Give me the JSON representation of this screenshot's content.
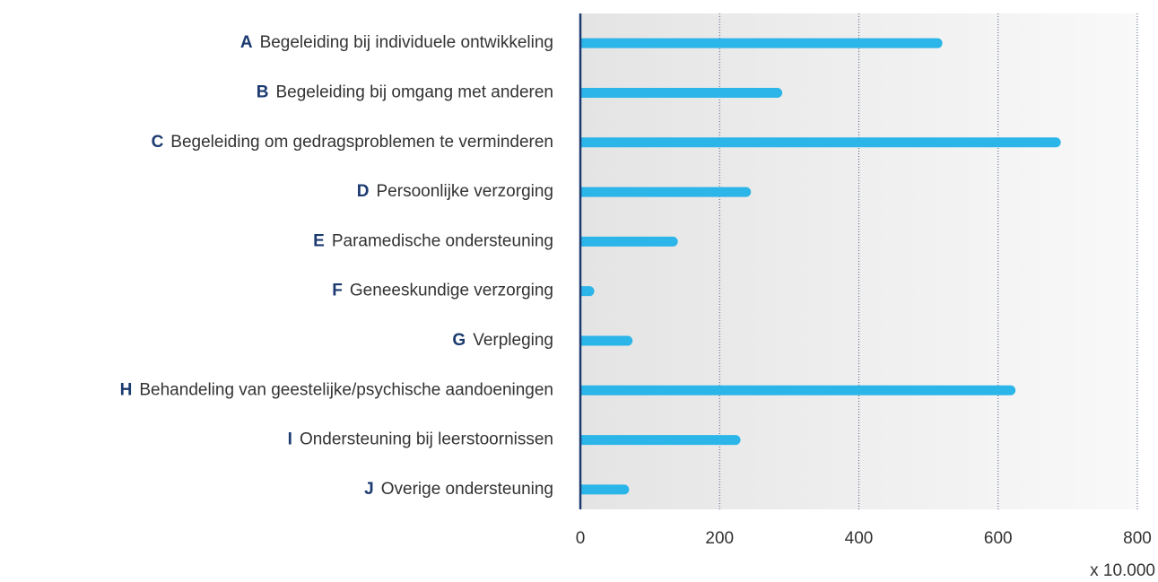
{
  "chart_data": {
    "type": "hbar",
    "category_codes": [
      "A",
      "B",
      "C",
      "D",
      "E",
      "F",
      "G",
      "H",
      "I",
      "J"
    ],
    "categories": [
      "Begeleiding bij individuele ontwikkeling",
      "Begeleiding bij omgang met anderen",
      "Begeleiding om gedragsproblemen te verminderen",
      "Persoonlijke verzorging",
      "Paramedische ondersteuning",
      "Geneeskundige verzorging",
      "Verpleging",
      "Behandeling van geestelijke/psychische aandoeningen",
      "Ondersteuning bij leerstoornissen",
      "Overige ondersteuning"
    ],
    "values": [
      520,
      290,
      690,
      245,
      140,
      20,
      75,
      625,
      230,
      70
    ],
    "color": "#2bb5e8",
    "xlim": [
      0,
      800
    ],
    "xticks": [
      0,
      200,
      400,
      600,
      800
    ],
    "x_unit_note": "x 10.000",
    "grid": true
  }
}
